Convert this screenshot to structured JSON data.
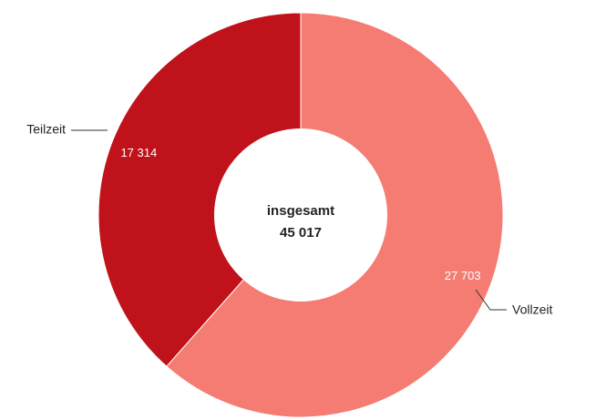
{
  "chart_data": {
    "type": "donut",
    "categories": [
      "Vollzeit",
      "Teilzeit"
    ],
    "values": [
      27703,
      17314
    ],
    "value_labels": [
      "27 703",
      "17 314"
    ],
    "colors": [
      "#f47c72",
      "#c0121b"
    ],
    "center_label": "insgesamt",
    "total": 45017,
    "total_label": "45 017"
  }
}
